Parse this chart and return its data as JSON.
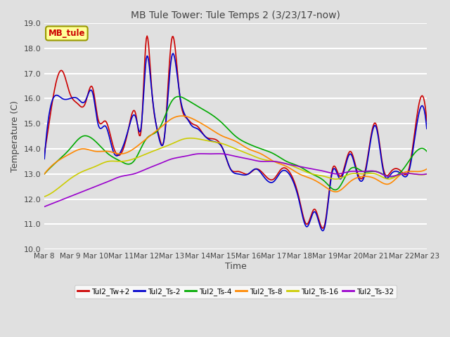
{
  "title": "MB Tule Tower: Tule Temps 2 (3/23/17-now)",
  "xlabel": "Time",
  "ylabel": "Temperature (C)",
  "ylim": [
    10.0,
    19.0
  ],
  "yticks": [
    10.0,
    11.0,
    12.0,
    13.0,
    14.0,
    15.0,
    16.0,
    17.0,
    18.0,
    19.0
  ],
  "xtick_labels": [
    "Mar 8",
    "Mar 9",
    "Mar 10",
    "Mar 11",
    "Mar 12",
    "Mar 13",
    "Mar 14",
    "Mar 15",
    "Mar 16",
    "Mar 17",
    "Mar 18",
    "Mar 19",
    "Mar 20",
    "Mar 21",
    "Mar 22",
    "Mar 23"
  ],
  "background_color": "#e0e0e0",
  "plot_bg_color": "#e0e0e0",
  "grid_color": "#ffffff",
  "series": {
    "Tul2_Tw+2": {
      "color": "#cc0000",
      "lw": 1.2
    },
    "Tul2_Ts-2": {
      "color": "#0000cc",
      "lw": 1.2
    },
    "Tul2_Ts-4": {
      "color": "#00aa00",
      "lw": 1.2
    },
    "Tul2_Ts-8": {
      "color": "#ff8800",
      "lw": 1.2
    },
    "Tul2_Ts-16": {
      "color": "#cccc00",
      "lw": 1.2
    },
    "Tul2_Ts-32": {
      "color": "#9900cc",
      "lw": 1.2
    }
  },
  "annotation_label": "MB_tule",
  "annotation_color": "#cc0000",
  "annotation_bg": "#ffff99",
  "annotation_edge": "#999900",
  "tw2_x": [
    0,
    0.3,
    0.7,
    1.0,
    1.3,
    1.6,
    1.9,
    2.1,
    2.4,
    2.7,
    3.0,
    3.3,
    3.6,
    3.8,
    4.0,
    4.2,
    4.5,
    4.7,
    5.0,
    5.3,
    5.6,
    5.8,
    6.0,
    6.3,
    6.6,
    7.0,
    7.3,
    7.6,
    8.0,
    8.3,
    8.6,
    9.0,
    9.3,
    9.6,
    10.0,
    10.3,
    10.6,
    11.0,
    11.3,
    11.6,
    12.0,
    12.3,
    12.6,
    13.0,
    13.3,
    13.6,
    14.0,
    14.3,
    14.6,
    15.0
  ],
  "tw2_y": [
    13.8,
    15.8,
    17.1,
    16.2,
    15.8,
    15.8,
    16.4,
    15.2,
    15.1,
    14.1,
    13.8,
    14.8,
    15.3,
    14.8,
    18.4,
    16.5,
    14.5,
    14.4,
    18.4,
    16.2,
    15.2,
    15.0,
    14.9,
    14.5,
    14.4,
    14.0,
    13.2,
    13.1,
    13.0,
    13.2,
    13.0,
    12.8,
    13.2,
    13.1,
    12.0,
    11.0,
    11.6,
    11.0,
    13.2,
    12.9,
    13.9,
    13.0,
    13.2,
    15.0,
    13.2,
    13.1,
    13.1,
    13.2,
    15.2,
    15.1
  ],
  "ts2_x": [
    0,
    0.3,
    0.7,
    1.0,
    1.3,
    1.6,
    1.9,
    2.1,
    2.4,
    2.7,
    3.0,
    3.3,
    3.6,
    3.8,
    4.0,
    4.2,
    4.5,
    4.7,
    5.0,
    5.3,
    5.6,
    5.8,
    6.0,
    6.3,
    6.6,
    7.0,
    7.3,
    7.6,
    8.0,
    8.3,
    8.6,
    9.0,
    9.3,
    9.6,
    10.0,
    10.3,
    10.6,
    11.0,
    11.3,
    11.6,
    12.0,
    12.3,
    12.6,
    13.0,
    13.3,
    13.6,
    14.0,
    14.3,
    14.6,
    15.0
  ],
  "ts2_y": [
    13.6,
    15.9,
    16.0,
    16.0,
    16.0,
    15.9,
    16.2,
    15.0,
    14.9,
    13.9,
    13.9,
    14.8,
    15.2,
    14.9,
    17.6,
    16.4,
    14.4,
    14.4,
    17.7,
    16.2,
    15.2,
    14.9,
    14.8,
    14.5,
    14.3,
    14.0,
    13.2,
    13.0,
    13.0,
    13.2,
    12.9,
    12.7,
    13.1,
    13.0,
    11.9,
    10.9,
    11.5,
    10.9,
    13.1,
    12.8,
    13.8,
    12.9,
    13.1,
    14.9,
    13.1,
    13.0,
    13.0,
    13.1,
    14.9,
    14.8
  ],
  "ts4_x": [
    0,
    0.5,
    1.0,
    1.5,
    2.0,
    2.5,
    3.0,
    3.5,
    4.0,
    4.5,
    5.0,
    5.5,
    6.0,
    6.5,
    7.0,
    7.5,
    8.0,
    8.5,
    9.0,
    9.5,
    10.0,
    10.5,
    11.0,
    11.5,
    12.0,
    12.5,
    13.0,
    13.5,
    14.0,
    14.5,
    15.0
  ],
  "ts4_y": [
    13.0,
    13.5,
    14.0,
    14.5,
    14.3,
    13.8,
    13.5,
    13.5,
    14.4,
    14.8,
    15.9,
    16.0,
    15.7,
    15.4,
    15.0,
    14.5,
    14.2,
    14.0,
    13.8,
    13.5,
    13.3,
    13.0,
    12.7,
    12.4,
    13.2,
    13.1,
    13.1,
    12.9,
    13.1,
    13.8,
    13.9
  ],
  "ts8_x": [
    0,
    0.5,
    1.0,
    1.5,
    2.0,
    2.5,
    3.0,
    3.5,
    4.0,
    4.5,
    5.0,
    5.5,
    6.0,
    6.5,
    7.0,
    7.5,
    8.0,
    8.5,
    9.0,
    9.5,
    10.0,
    10.5,
    11.0,
    11.5,
    12.0,
    12.5,
    13.0,
    13.5,
    14.0,
    14.5,
    15.0
  ],
  "ts8_y": [
    13.0,
    13.5,
    13.8,
    14.0,
    13.9,
    13.9,
    13.8,
    14.0,
    14.4,
    14.8,
    15.2,
    15.3,
    15.1,
    14.8,
    14.5,
    14.3,
    14.0,
    13.8,
    13.5,
    13.3,
    13.0,
    12.8,
    12.5,
    12.3,
    12.7,
    12.9,
    12.8,
    12.6,
    13.0,
    13.1,
    13.2
  ],
  "ts16_x": [
    0,
    0.5,
    1.0,
    1.5,
    2.0,
    2.5,
    3.0,
    3.5,
    4.0,
    4.5,
    5.0,
    5.5,
    6.0,
    6.5,
    7.0,
    7.5,
    8.0,
    8.5,
    9.0,
    9.5,
    10.0,
    10.5,
    11.0,
    11.5,
    12.0,
    12.5,
    13.0,
    13.5,
    14.0,
    14.5,
    15.0
  ],
  "ts16_y": [
    12.1,
    12.4,
    12.8,
    13.1,
    13.3,
    13.5,
    13.5,
    13.6,
    13.8,
    14.0,
    14.2,
    14.4,
    14.4,
    14.3,
    14.2,
    14.0,
    13.8,
    13.6,
    13.5,
    13.4,
    13.2,
    13.0,
    12.9,
    12.8,
    13.0,
    13.0,
    13.0,
    12.8,
    13.0,
    13.0,
    13.0
  ],
  "ts32_x": [
    0,
    0.5,
    1.0,
    1.5,
    2.0,
    2.5,
    3.0,
    3.5,
    4.0,
    4.5,
    5.0,
    5.5,
    6.0,
    6.5,
    7.0,
    7.5,
    8.0,
    8.5,
    9.0,
    9.5,
    10.0,
    10.5,
    11.0,
    11.5,
    12.0,
    12.5,
    13.0,
    13.5,
    14.0,
    14.5,
    15.0
  ],
  "ts32_y": [
    11.7,
    11.9,
    12.1,
    12.3,
    12.5,
    12.7,
    12.9,
    13.0,
    13.2,
    13.4,
    13.6,
    13.7,
    13.8,
    13.8,
    13.8,
    13.7,
    13.6,
    13.5,
    13.5,
    13.4,
    13.3,
    13.2,
    13.1,
    13.0,
    13.1,
    13.1,
    13.1,
    12.9,
    13.0,
    13.0,
    13.0
  ]
}
